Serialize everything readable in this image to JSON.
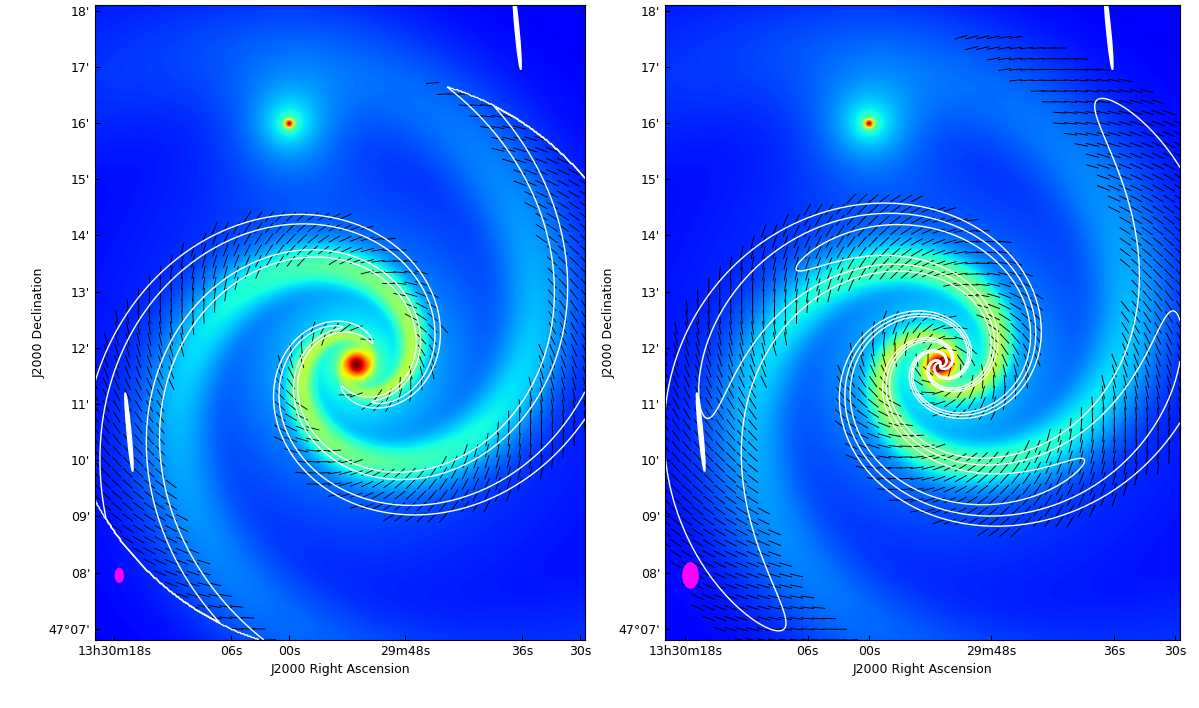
{
  "chart_data": [
    {
      "type": "image",
      "xlabel": "J2000 Right Ascension",
      "ylabel": "J2000 Declination",
      "xlim": [
        80,
        29.5
      ],
      "ylim": [
        6.8,
        18.1
      ],
      "xticks": [
        {
          "value": 78,
          "label": "13h30m18s"
        },
        {
          "value": 66,
          "label": "06s"
        },
        {
          "value": 60,
          "label": "00s"
        },
        {
          "value": 48,
          "label": "29m48s"
        },
        {
          "value": 36,
          "label": "36s"
        },
        {
          "value": 30,
          "label": "30s"
        }
      ],
      "yticks": [
        {
          "value": 7,
          "label": "47°07'"
        },
        {
          "value": 8,
          "label": "08'"
        },
        {
          "value": 9,
          "label": "09'"
        },
        {
          "value": 10,
          "label": "10'"
        },
        {
          "value": 11,
          "label": "11'"
        },
        {
          "value": 12,
          "label": "12'"
        },
        {
          "value": 13,
          "label": "13'"
        },
        {
          "value": 14,
          "label": "14'"
        },
        {
          "value": 15,
          "label": "15'"
        },
        {
          "value": 16,
          "label": "16'"
        },
        {
          "value": 17,
          "label": "17'"
        },
        {
          "value": 18,
          "label": "18'"
        }
      ]
    },
    {
      "type": "image",
      "xlabel": "J2000 Right Ascension",
      "ylabel": "J2000 Declination",
      "xlim": [
        80,
        29.5
      ],
      "ylim": [
        6.8,
        18.1
      ],
      "xticks": [
        {
          "value": 78,
          "label": "13h30m18s"
        },
        {
          "value": 66,
          "label": "06s"
        },
        {
          "value": 60,
          "label": "00s"
        },
        {
          "value": 48,
          "label": "29m48s"
        },
        {
          "value": 36,
          "label": "36s"
        },
        {
          "value": 30,
          "label": "30s"
        }
      ],
      "yticks": [
        {
          "value": 7,
          "label": "47°07'"
        },
        {
          "value": 8,
          "label": "08'"
        },
        {
          "value": 9,
          "label": "09'"
        },
        {
          "value": 10,
          "label": "10'"
        },
        {
          "value": 11,
          "label": "11'"
        },
        {
          "value": 12,
          "label": "12'"
        },
        {
          "value": 13,
          "label": "13'"
        },
        {
          "value": 14,
          "label": "14'"
        },
        {
          "value": 15,
          "label": "15'"
        },
        {
          "value": 16,
          "label": "16'"
        },
        {
          "value": 17,
          "label": "17'"
        },
        {
          "value": 18,
          "label": "18'"
        }
      ]
    }
  ]
}
